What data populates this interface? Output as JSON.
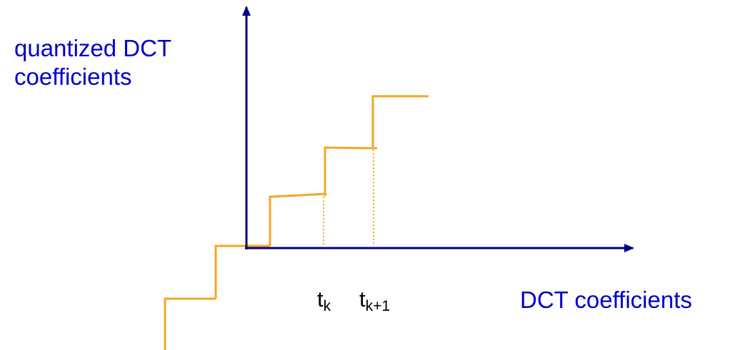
{
  "labels": {
    "y_axis_line1": "quantized DCT",
    "y_axis_line2": "coefficients",
    "x_axis": "DCT coefficients",
    "tick_k_base": "t",
    "tick_k_sub": "k",
    "tick_k1_base": "t",
    "tick_k1_sub": "k+1"
  },
  "colors": {
    "axis": "#000080",
    "staircase": "#f5a623",
    "label_text": "#0000cc",
    "tick_text": "#000000"
  }
}
